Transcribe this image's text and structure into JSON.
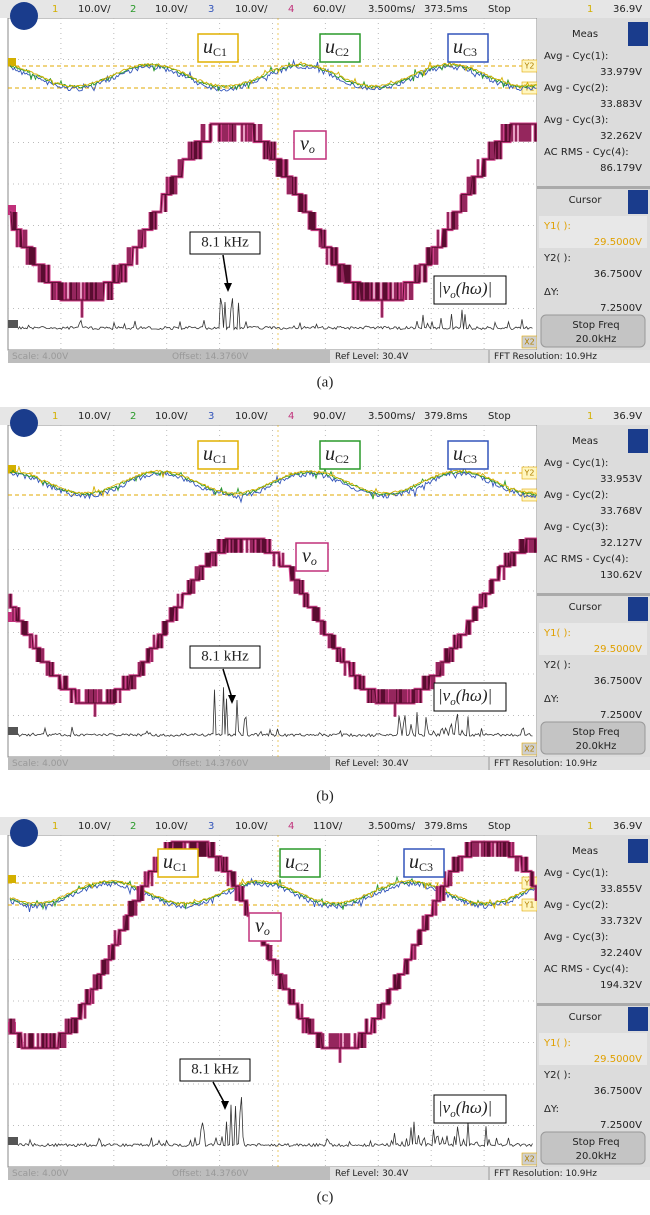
{
  "panels": [
    {
      "caption": "(a)",
      "top_bar": {
        "ch1": "1",
        "ch1_scale": "10.0V/",
        "ch2": "2",
        "ch2_scale": "10.0V/",
        "ch3": "3",
        "ch3_scale": "10.0V/",
        "ch4": "4",
        "ch4_scale": "60.0V/",
        "timebase": "3.500ms/",
        "delay": "373.5ms",
        "status": "Stop",
        "trigger_channel": "1",
        "trigger_level": "36.9V"
      },
      "labels": {
        "u_c1": {
          "symbol": "u",
          "subscript": "C1"
        },
        "u_c2": {
          "symbol": "u",
          "subscript": "C2"
        },
        "u_c3": {
          "symbol": "u",
          "subscript": "C3"
        },
        "v_o": {
          "symbol": "v",
          "subscript": "o"
        },
        "frequency": "8.1 kHz",
        "spectrum": {
          "open": "|v",
          "subscript": "o",
          "close": "(hω)|"
        }
      },
      "cursor_tags": [
        "Y2",
        "Y1",
        "X2"
      ],
      "measurements": {
        "title": "Meas",
        "items": [
          {
            "label": "Avg - Cyc(1):",
            "value": "33.979V"
          },
          {
            "label": "Avg - Cyc(2):",
            "value": "33.883V"
          },
          {
            "label": "Avg - Cyc(3):",
            "value": "32.262V"
          },
          {
            "label": "AC RMS - Cyc(4):",
            "value": "86.179V"
          }
        ]
      },
      "cursor": {
        "title": "Cursor",
        "y1_label": "Y1( ):",
        "y1_value": "29.5000V",
        "y2_label": "Y2( ):",
        "y2_value": "36.7500V",
        "dy_label": "ΔY:",
        "dy_value": "7.2500V",
        "button": "Stop Freq",
        "button_value": "20.0kHz"
      },
      "bottom_bar": {
        "scale": "Scale: 4.00V",
        "offset": "Offset: 14.3760V",
        "ref_level": "Ref Level: 30.4V",
        "fft_resolution": "FFT Resolution: 10.9Hz"
      }
    },
    {
      "caption": "(b)",
      "top_bar": {
        "ch1": "1",
        "ch1_scale": "10.0V/",
        "ch2": "2",
        "ch2_scale": "10.0V/",
        "ch3": "3",
        "ch3_scale": "10.0V/",
        "ch4": "4",
        "ch4_scale": "90.0V/",
        "timebase": "3.500ms/",
        "delay": "379.8ms",
        "status": "Stop",
        "trigger_channel": "1",
        "trigger_level": "36.9V"
      },
      "labels": {
        "u_c1": {
          "symbol": "u",
          "subscript": "C1"
        },
        "u_c2": {
          "symbol": "u",
          "subscript": "C2"
        },
        "u_c3": {
          "symbol": "u",
          "subscript": "C3"
        },
        "v_o": {
          "symbol": "v",
          "subscript": "o"
        },
        "frequency": "8.1 kHz",
        "spectrum": {
          "open": "|v",
          "subscript": "o",
          "close": "(hω)|"
        }
      },
      "cursor_tags": [
        "Y2",
        "Y1",
        "X2"
      ],
      "measurements": {
        "title": "Meas",
        "items": [
          {
            "label": "Avg - Cyc(1):",
            "value": "33.953V"
          },
          {
            "label": "Avg - Cyc(2):",
            "value": "33.768V"
          },
          {
            "label": "Avg - Cyc(3):",
            "value": "32.127V"
          },
          {
            "label": "AC RMS - Cyc(4):",
            "value": "130.62V"
          }
        ]
      },
      "cursor": {
        "title": "Cursor",
        "y1_label": "Y1( ):",
        "y1_value": "29.5000V",
        "y2_label": "Y2( ):",
        "y2_value": "36.7500V",
        "dy_label": "ΔY:",
        "dy_value": "7.2500V",
        "button": "Stop Freq",
        "button_value": "20.0kHz"
      },
      "bottom_bar": {
        "scale": "Scale: 4.00V",
        "offset": "Offset: 14.3760V",
        "ref_level": "Ref Level: 30.4V",
        "fft_resolution": "FFT Resolution: 10.9Hz"
      }
    },
    {
      "caption": "(c)",
      "top_bar": {
        "ch1": "1",
        "ch1_scale": "10.0V/",
        "ch2": "2",
        "ch2_scale": "10.0V/",
        "ch3": "3",
        "ch3_scale": "10.0V/",
        "ch4": "4",
        "ch4_scale": "110V/",
        "timebase": "3.500ms/",
        "delay": "379.8ms",
        "status": "Stop",
        "trigger_channel": "1",
        "trigger_level": "36.9V"
      },
      "labels": {
        "u_c1": {
          "symbol": "u",
          "subscript": "C1"
        },
        "u_c2": {
          "symbol": "u",
          "subscript": "C2"
        },
        "u_c3": {
          "symbol": "u",
          "subscript": "C3"
        },
        "v_o": {
          "symbol": "v",
          "subscript": "o"
        },
        "frequency": "8.1 kHz",
        "spectrum": {
          "open": "|v",
          "subscript": "o",
          "close": "(hω)|"
        }
      },
      "cursor_tags": [
        "Y2",
        "Y1",
        "X2"
      ],
      "measurements": {
        "title": "Meas",
        "items": [
          {
            "label": "Avg - Cyc(1):",
            "value": "33.855V"
          },
          {
            "label": "Avg - Cyc(2):",
            "value": "33.732V"
          },
          {
            "label": "Avg - Cyc(3):",
            "value": "32.240V"
          },
          {
            "label": "AC RMS - Cyc(4):",
            "value": "194.32V"
          }
        ]
      },
      "cursor": {
        "title": "Cursor",
        "y1_label": "Y1( ):",
        "y1_value": "29.5000V",
        "y2_label": "Y2( ):",
        "y2_value": "36.7500V",
        "dy_label": "ΔY:",
        "dy_value": "7.2500V",
        "button": "Stop Freq",
        "button_value": "20.0kHz"
      },
      "bottom_bar": {
        "scale": "Scale: 4.00V",
        "offset": "Offset: 14.3760V",
        "ref_level": "Ref Level: 30.4V",
        "fft_resolution": "FFT Resolution: 10.9Hz"
      }
    }
  ]
}
